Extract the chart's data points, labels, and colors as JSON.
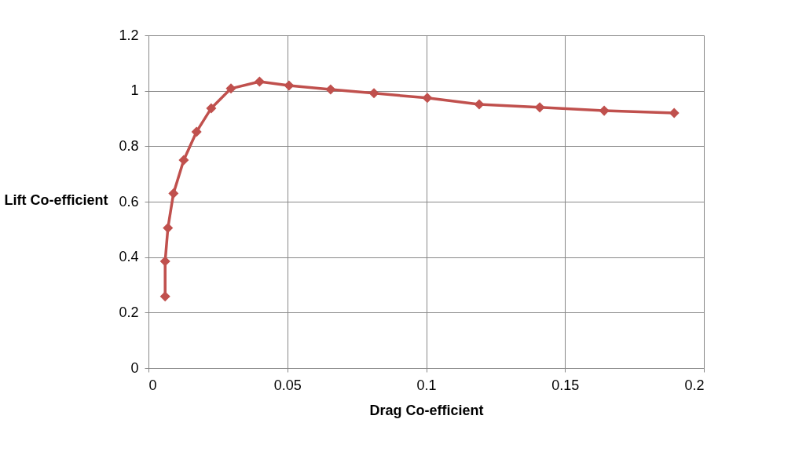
{
  "chart_data": {
    "type": "line",
    "xlabel": "Drag Co-efficient",
    "ylabel": "Lift Co-efficient",
    "xlim": [
      0,
      0.2
    ],
    "xticks": [
      0,
      0.05,
      0.1,
      0.15,
      0.2
    ],
    "ylim": [
      0,
      1.2
    ],
    "yticks": [
      0,
      0.2,
      0.4,
      0.6,
      0.8,
      1,
      1.2
    ],
    "grid": true,
    "marker": "diamond",
    "line_style": "solid",
    "series": [
      {
        "color": "#c0504d",
        "x": [
          0.006,
          0.006,
          0.007,
          0.009,
          0.0127,
          0.0173,
          0.0226,
          0.0297,
          0.04,
          0.0506,
          0.0656,
          0.0812,
          0.1004,
          0.1191,
          0.1409,
          0.1641,
          0.1893
        ],
        "values": [
          0.258,
          0.385,
          0.505,
          0.63,
          0.75,
          0.852,
          0.937,
          1.008,
          1.033,
          1.019,
          1.005,
          0.991,
          0.974,
          0.951,
          0.94,
          0.928,
          0.92
        ]
      }
    ]
  }
}
